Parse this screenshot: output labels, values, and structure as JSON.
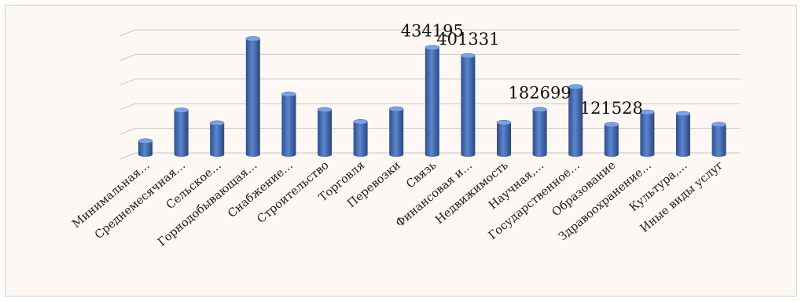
{
  "chart_data": {
    "type": "bar",
    "style": "3d-cylinder",
    "title": "",
    "xlabel": "",
    "ylabel": "",
    "grid": true,
    "legend": "none",
    "ylim": [
      0,
      500000
    ],
    "bar_color": "#4472c4",
    "categories": [
      "Минимальная…",
      "Среднемесячная…",
      "Сельское…",
      "Горнодобывающая…",
      "Снабжение…",
      "Строительство",
      "Торговля",
      "Перевозки",
      "Связь",
      "Финансовая и…",
      "Недвижимость",
      "Научная,…",
      "Государственное…",
      "Образование",
      "Здравоохранение…",
      "Культура,…",
      "Иные виды услуг"
    ],
    "values": [
      55000,
      180000,
      128000,
      470000,
      245000,
      182000,
      133000,
      185000,
      434195,
      401331,
      130000,
      182699,
      275000,
      121528,
      172000,
      166000,
      122000
    ],
    "data_labels": [
      null,
      null,
      null,
      null,
      null,
      null,
      null,
      null,
      "434195",
      "401331",
      null,
      "182699",
      null,
      "121528",
      null,
      null,
      null
    ]
  }
}
